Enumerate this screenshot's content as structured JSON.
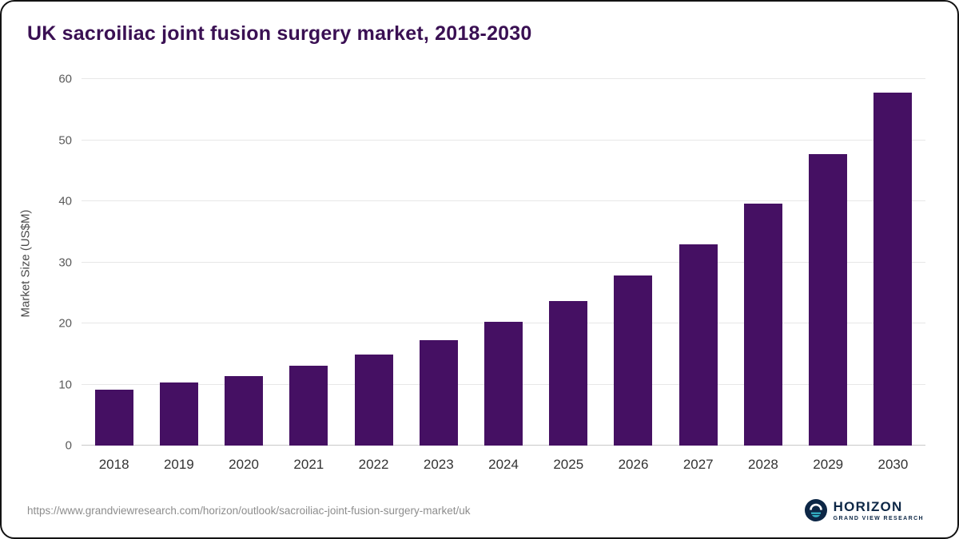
{
  "title": "UK sacroiliac joint fusion surgery market, 2018-2030",
  "footer": {
    "source_url": "https://www.grandviewresearch.com/horizon/outlook/sacroiliac-joint-fusion-surgery-market/uk",
    "brand": {
      "name": "HORIZON",
      "subtitle": "GRAND VIEW RESEARCH"
    }
  },
  "colors": {
    "bar": "#451063",
    "title": "#3a1053",
    "grid": "#e7e7e7",
    "logo_navy": "#0d2746",
    "logo_teal": "#35b6c9"
  },
  "chart_data": {
    "type": "bar",
    "categories": [
      "2018",
      "2019",
      "2020",
      "2021",
      "2022",
      "2023",
      "2024",
      "2025",
      "2026",
      "2027",
      "2028",
      "2029",
      "2030"
    ],
    "values": [
      9.2,
      10.3,
      11.4,
      13.1,
      14.9,
      17.3,
      20.2,
      23.6,
      27.8,
      33.0,
      39.6,
      47.7,
      57.8
    ],
    "title": "UK sacroiliac joint fusion surgery market, 2018-2030",
    "xlabel": "",
    "ylabel": "Market Size (US$M)",
    "ylim": [
      0,
      60
    ],
    "yticks": [
      0,
      10,
      20,
      30,
      40,
      50,
      60
    ],
    "grid": true,
    "legend": false,
    "bar_color": "#451063"
  }
}
